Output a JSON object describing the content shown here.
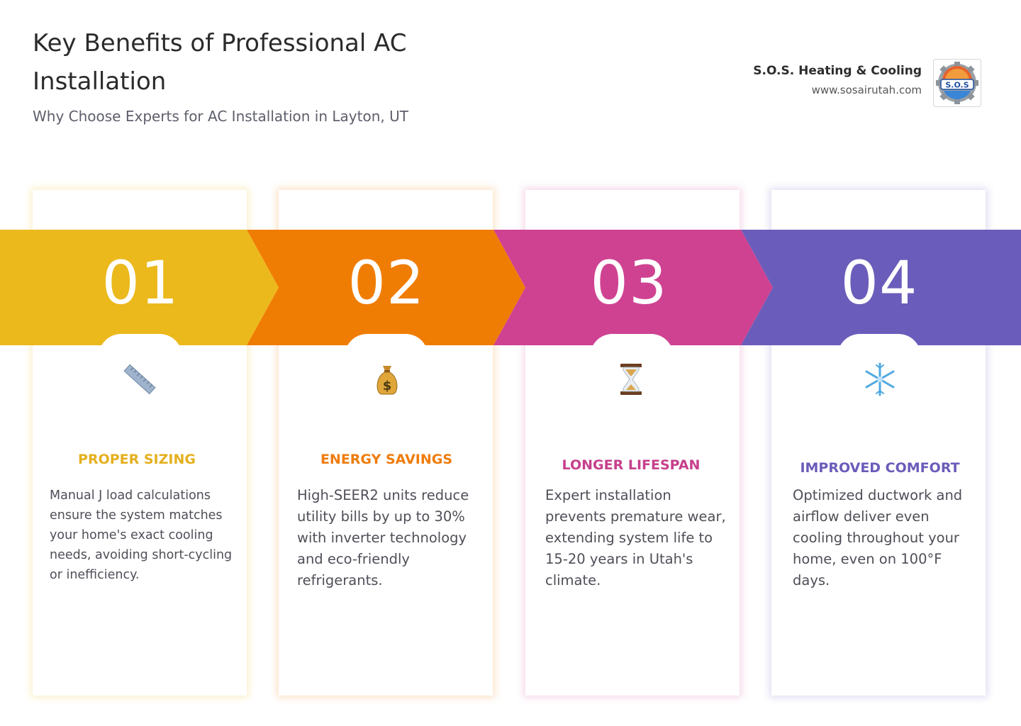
{
  "header": {
    "title": "Key Benefits of Professional AC Installation",
    "subtitle": "Why Choose Experts for AC Installation in Layton, UT"
  },
  "brand": {
    "name": "S.O.S. Heating & Cooling",
    "url": "www.sosairutah.com",
    "logo_text": "S.O.S"
  },
  "colors": {
    "step1": "#ebb91c",
    "step2": "#f07d03",
    "step3": "#cf4292",
    "step4": "#6a5cba"
  },
  "cards": [
    {
      "number": "01",
      "icon": "ruler-icon",
      "title": "PROPER SIZING",
      "body": "Manual J load calculations ensure the system matches your home's exact cooling needs, avoiding short-cycling or inefficiency."
    },
    {
      "number": "02",
      "icon": "money-bag-icon",
      "title": "ENERGY SAVINGS",
      "body": "High-SEER2 units reduce utility bills by up to 30% with inverter technology and eco-friendly refrigerants."
    },
    {
      "number": "03",
      "icon": "hourglass-icon",
      "title": "LONGER LIFESPAN",
      "body": "Expert installation prevents premature wear, extending system life to 15-20 years in Utah's climate."
    },
    {
      "number": "04",
      "icon": "snowflake-icon",
      "title": "IMPROVED COMFORT",
      "body": "Optimized ductwork and airflow deliver even cooling throughout your home, even on 100°F days."
    }
  ]
}
